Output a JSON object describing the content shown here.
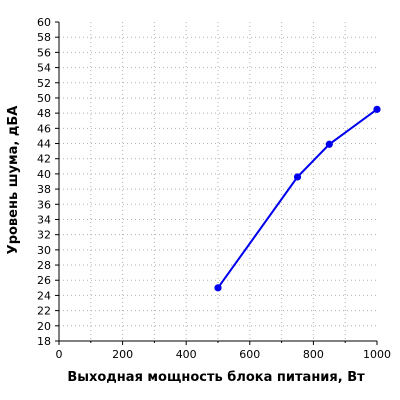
{
  "chart_data": {
    "type": "line",
    "title": "",
    "xlabel": "Выходная мощность блока питания, Вт",
    "ylabel": "Уровень шума, дБА",
    "xlim": [
      0,
      1000
    ],
    "ylim": [
      18,
      60
    ],
    "xticks": [
      0,
      200,
      400,
      600,
      800,
      1000
    ],
    "yticks": [
      18,
      20,
      22,
      24,
      26,
      28,
      30,
      32,
      34,
      36,
      38,
      40,
      42,
      44,
      46,
      48,
      50,
      52,
      54,
      56,
      58,
      60
    ],
    "grid": true,
    "series": [
      {
        "color": "#0000ee",
        "points": [
          {
            "x": 500,
            "y": 25.0
          },
          {
            "x": 750,
            "y": 39.6
          },
          {
            "x": 850,
            "y": 43.9
          },
          {
            "x": 1000,
            "y": 48.5
          }
        ]
      }
    ]
  }
}
